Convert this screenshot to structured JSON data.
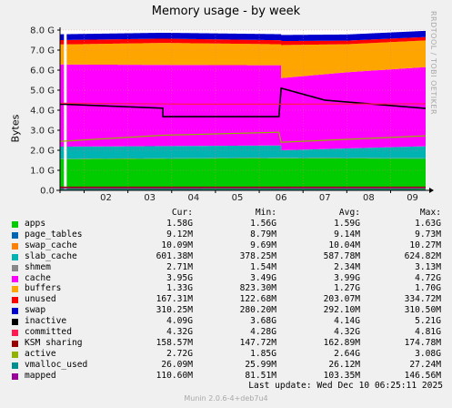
{
  "title": "Memory usage - by week",
  "side_text": "RRDTOOL / TOBI OETIKER",
  "footer": "Munin 2.0.6-4+deb7u4",
  "last_update": "Last update: Wed Dec 10 06:25:11 2025",
  "legend_headers": {
    "cur": "Cur:",
    "min": "Min:",
    "avg": "Avg:",
    "max": "Max:"
  },
  "legend": [
    {
      "name": "apps",
      "color": "#00cc00",
      "cur": "1.58G",
      "min": "1.56G",
      "avg": "1.59G",
      "max": "1.63G"
    },
    {
      "name": "page_tables",
      "color": "#0066b3",
      "cur": "9.12M",
      "min": "8.79M",
      "avg": "9.14M",
      "max": "9.73M"
    },
    {
      "name": "swap_cache",
      "color": "#ff8000",
      "cur": "10.09M",
      "min": "9.69M",
      "avg": "10.04M",
      "max": "10.27M"
    },
    {
      "name": "slab_cache",
      "color": "#00b3b3",
      "cur": "601.38M",
      "min": "378.25M",
      "avg": "587.78M",
      "max": "624.82M"
    },
    {
      "name": "shmem",
      "color": "#888888",
      "cur": "2.71M",
      "min": "1.54M",
      "avg": "2.34M",
      "max": "3.13M"
    },
    {
      "name": "cache",
      "color": "#ff00ff",
      "cur": "3.95G",
      "min": "3.49G",
      "avg": "3.99G",
      "max": "4.72G"
    },
    {
      "name": "buffers",
      "color": "#ffa500",
      "cur": "1.33G",
      "min": "823.30M",
      "avg": "1.27G",
      "max": "1.70G"
    },
    {
      "name": "unused",
      "color": "#ff0000",
      "cur": "167.31M",
      "min": "122.68M",
      "avg": "203.07M",
      "max": "334.72M"
    },
    {
      "name": "swap",
      "color": "#0000cc",
      "cur": "310.25M",
      "min": "280.20M",
      "avg": "292.10M",
      "max": "310.50M"
    },
    {
      "name": "inactive",
      "color": "#000000",
      "cur": "4.09G",
      "min": "3.68G",
      "avg": "4.14G",
      "max": "5.21G"
    },
    {
      "name": "committed",
      "color": "#ff1a53",
      "cur": "4.32G",
      "min": "4.28G",
      "avg": "4.32G",
      "max": "4.81G"
    },
    {
      "name": "KSM sharing",
      "color": "#990000",
      "cur": "158.57M",
      "min": "147.72M",
      "avg": "162.89M",
      "max": "174.78M"
    },
    {
      "name": "active",
      "color": "#8fb300",
      "cur": "2.72G",
      "min": "1.85G",
      "avg": "2.64G",
      "max": "3.08G"
    },
    {
      "name": "vmalloc_used",
      "color": "#008f8f",
      "cur": "26.09M",
      "min": "25.99M",
      "avg": "26.12M",
      "max": "27.24M"
    },
    {
      "name": "mapped",
      "color": "#990099",
      "cur": "110.60M",
      "min": "81.51M",
      "avg": "103.35M",
      "max": "146.56M"
    }
  ],
  "chart_data": {
    "type": "area",
    "title": "Memory usage - by week",
    "ylabel": "Bytes",
    "ylim": [
      0,
      8
    ],
    "y_unit": "G",
    "y_ticks": [
      "0.0",
      "1.0 G",
      "2.0 G",
      "3.0 G",
      "4.0 G",
      "5.0 G",
      "6.0 G",
      "7.0 G",
      "8.0 G"
    ],
    "x_ticks": [
      "02",
      "03",
      "04",
      "05",
      "06",
      "07",
      "08",
      "09"
    ],
    "x_range_days": [
      1.45,
      9.8
    ],
    "grid": true,
    "stacked_series": [
      {
        "name": "apps",
        "color": "#00cc00",
        "x": [
          1.5,
          6.5,
          9.8
        ],
        "values": [
          1.56,
          1.6,
          1.58
        ]
      },
      {
        "name": "page_tables",
        "color": "#0066b3",
        "x": [
          1.5,
          9.8
        ],
        "values": [
          0.009,
          0.009
        ]
      },
      {
        "name": "swap_cache",
        "color": "#ff8000",
        "x": [
          1.5,
          9.8
        ],
        "values": [
          0.01,
          0.01
        ]
      },
      {
        "name": "slab_cache",
        "color": "#00b3b3",
        "x": [
          1.5,
          6.5,
          6.5,
          9.8
        ],
        "values": [
          0.6,
          0.62,
          0.38,
          0.6
        ]
      },
      {
        "name": "shmem",
        "color": "#888888",
        "x": [
          1.5,
          9.8
        ],
        "values": [
          0.003,
          0.003
        ]
      },
      {
        "name": "cache",
        "color": "#ff00ff",
        "x": [
          1.5,
          3.8,
          6.5,
          6.5,
          8.0,
          9.8
        ],
        "values": [
          4.1,
          4.05,
          4.0,
          3.6,
          3.8,
          3.95
        ]
      },
      {
        "name": "buffers",
        "color": "#ffa500",
        "x": [
          1.5,
          3.8,
          6.5,
          6.5,
          8.0,
          9.8
        ],
        "values": [
          1.0,
          1.1,
          1.05,
          1.65,
          1.4,
          1.33
        ]
      },
      {
        "name": "unused",
        "color": "#ff0000",
        "x": [
          1.5,
          6.5,
          8.0,
          9.8
        ],
        "values": [
          0.22,
          0.2,
          0.18,
          0.17
        ]
      },
      {
        "name": "swap",
        "color": "#0000cc",
        "x": [
          1.5,
          9.8
        ],
        "values": [
          0.29,
          0.31
        ]
      }
    ],
    "line_series": [
      {
        "name": "inactive",
        "color": "#000000",
        "x": [
          1.5,
          3.8,
          3.8,
          6.45,
          6.5,
          7.5,
          9.8
        ],
        "values": [
          4.3,
          4.1,
          3.68,
          3.68,
          5.1,
          4.5,
          4.09
        ]
      },
      {
        "name": "committed",
        "color": "#ff1a53",
        "x": [
          1.5,
          4.5,
          6.5,
          9.8
        ],
        "values": [
          4.35,
          4.3,
          4.3,
          4.32
        ]
      },
      {
        "name": "KSM sharing",
        "color": "#990000",
        "x": [
          1.5,
          9.8
        ],
        "values": [
          0.16,
          0.16
        ]
      },
      {
        "name": "active",
        "color": "#8fb300",
        "x": [
          1.5,
          3.8,
          6.45,
          6.5,
          9.8
        ],
        "values": [
          2.45,
          2.75,
          2.9,
          2.4,
          2.72
        ]
      },
      {
        "name": "vmalloc_used",
        "color": "#008f8f",
        "x": [
          1.5,
          9.8
        ],
        "values": [
          0.026,
          0.026
        ]
      },
      {
        "name": "mapped",
        "color": "#990099",
        "x": [
          1.5,
          9.8
        ],
        "values": [
          0.1,
          0.11
        ]
      }
    ]
  }
}
